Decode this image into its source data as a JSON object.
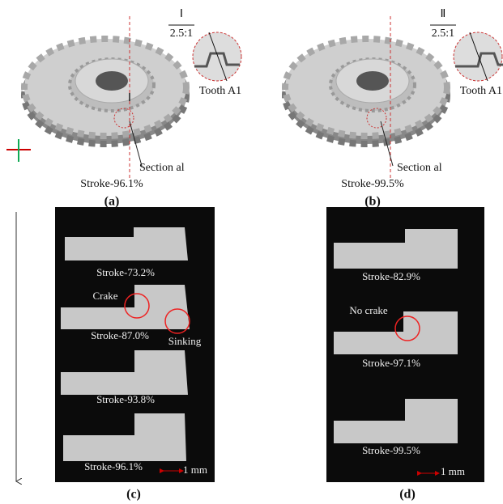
{
  "panels": [
    {
      "detail_label": "Ⅰ",
      "scale": "2.5:1",
      "tooth": "Tooth A1",
      "marker": "Ⅰ",
      "section": "Section al",
      "stroke": "Stroke-96.1%",
      "label": "(a)"
    },
    {
      "detail_label": "Ⅱ",
      "scale": "2.5:1",
      "tooth": "Tooth A1",
      "section": "Section al",
      "stroke": "Stroke-99.5%",
      "label": "(b)"
    }
  ],
  "photos": [
    {
      "strokes": [
        "Stroke-73.2%",
        "Stroke-87.0%",
        "Stroke-93.8%",
        "Stroke-96.1%"
      ],
      "notes": [
        "Crake",
        "Sinking"
      ],
      "scale_bar": "1 mm",
      "label": "(c)"
    },
    {
      "strokes": [
        "Stroke-82.9%",
        "Stroke-97.1%",
        "Stroke-99.5%"
      ],
      "notes": [
        "No crake"
      ],
      "scale_bar": "1 mm",
      "label": "(d)"
    }
  ]
}
